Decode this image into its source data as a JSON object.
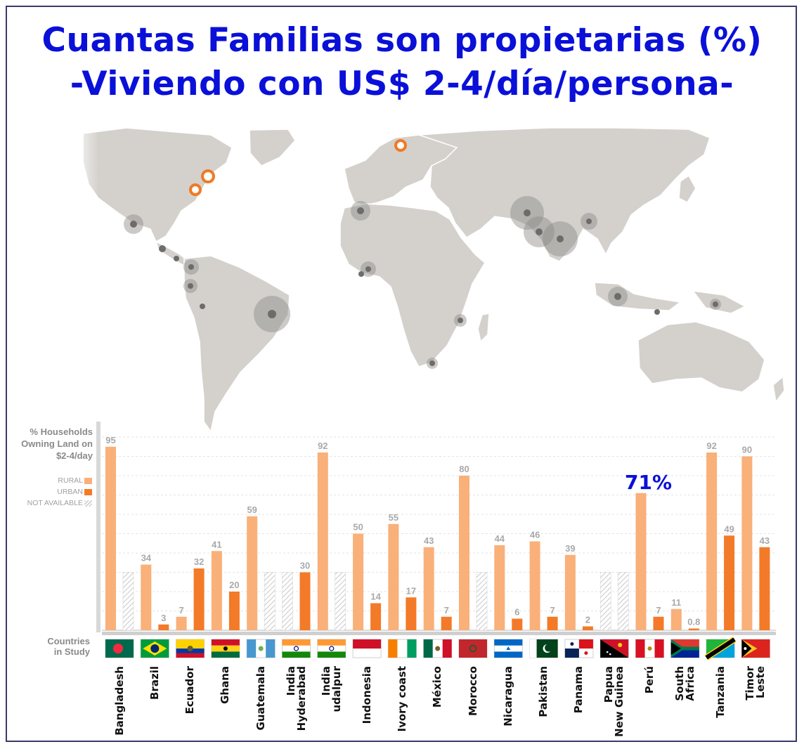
{
  "title": {
    "line1": "Cuantas Familias son propietarias (%)",
    "line2": "-Viviendo con US$ 2-4/día/persona-"
  },
  "legend": {
    "ylabel_lines": [
      "% Households",
      "Owning Land on",
      "$2-4/day"
    ],
    "rural": "RURAL",
    "urban": "URBAN",
    "not_available": "NOT AVAILABLE",
    "countries_label_lines": [
      "Countries",
      "in Study"
    ]
  },
  "colors": {
    "title": "#0a10d8",
    "rural": "#f9b079",
    "urban": "#f37a28",
    "na": "#e2e2e2",
    "map_land": "#d4d1cd",
    "marker_gray": "#8c8a88",
    "marker_orange": "#f07a24"
  },
  "annotation": {
    "peru_label": "71%"
  },
  "chart_data": {
    "type": "bar",
    "title": "% Households Owning Land on $2-4/day",
    "xlabel": "Countries in Study",
    "ylabel": "% Households Owning Land on $2-4/day",
    "ylim": [
      0,
      100
    ],
    "grid": true,
    "categories": [
      "Bangladesh",
      "Brazil",
      "Ecuador",
      "Ghana",
      "Guatemala",
      "India Hyderabad",
      "India udalpur",
      "Indonesia",
      "Ivory coast",
      "México",
      "Morocco",
      "Nicaragua",
      "Pakistan",
      "Panama",
      "Papua New Guinea",
      "Perú",
      "South Africa",
      "Tanzania",
      "Timor Leste"
    ],
    "category_lines": [
      [
        "Bangladesh"
      ],
      [
        "Brazil"
      ],
      [
        "Ecuador"
      ],
      [
        "Ghana"
      ],
      [
        "Guatemala"
      ],
      [
        "India",
        "Hyderabad"
      ],
      [
        "India",
        "udalpur"
      ],
      [
        "Indonesia"
      ],
      [
        "Ivory coast"
      ],
      [
        "México"
      ],
      [
        "Morocco"
      ],
      [
        "Nicaragua"
      ],
      [
        "Pakistan"
      ],
      [
        "Panama"
      ],
      [
        "Papua",
        "New Guinea"
      ],
      [
        "Perú"
      ],
      [
        "South",
        "Africa"
      ],
      [
        "Tanzania"
      ],
      [
        "Timor",
        "Leste"
      ]
    ],
    "series": [
      {
        "name": "RURAL",
        "values": [
          95,
          34,
          7,
          41,
          59,
          null,
          92,
          50,
          55,
          43,
          80,
          44,
          46,
          39,
          null,
          71,
          11,
          92,
          90
        ]
      },
      {
        "name": "URBAN",
        "values": [
          null,
          3,
          32,
          20,
          null,
          30,
          null,
          14,
          17,
          7,
          null,
          6,
          7,
          2,
          null,
          7,
          0.8,
          49,
          43
        ]
      }
    ],
    "value_labels": {
      "rural": [
        "95",
        "34",
        "7",
        "41",
        "59",
        "",
        "92",
        "50",
        "55",
        "43",
        "80",
        "44",
        "46",
        "39",
        "",
        "",
        "11",
        "92",
        "90"
      ],
      "urban": [
        "",
        "3",
        "32",
        "20",
        "",
        "30",
        "",
        "14",
        "17",
        "7",
        "",
        "6",
        "7",
        "2",
        "",
        "7",
        "0.8",
        "49",
        "43"
      ]
    },
    "not_available": [
      {
        "category": "Bangladesh",
        "series": "URBAN"
      },
      {
        "category": "Guatemala",
        "series": "URBAN"
      },
      {
        "category": "India Hyderabad",
        "series": "RURAL"
      },
      {
        "category": "India udalpur",
        "series": "URBAN"
      },
      {
        "category": "Morocco",
        "series": "URBAN"
      },
      {
        "category": "Papua New Guinea",
        "series": "RURAL"
      },
      {
        "category": "Papua New Guinea",
        "series": "URBAN"
      }
    ]
  },
  "map_markers": [
    {
      "region": "north-america-east-1",
      "color": "orange"
    },
    {
      "region": "north-america-east-2",
      "color": "orange"
    },
    {
      "region": "northern-europe",
      "color": "orange"
    },
    {
      "region": "mexico",
      "color": "gray"
    },
    {
      "region": "central-america",
      "color": "gray"
    },
    {
      "region": "ecuador",
      "color": "gray"
    },
    {
      "region": "peru",
      "color": "gray"
    },
    {
      "region": "brazil",
      "color": "gray"
    },
    {
      "region": "morocco",
      "color": "gray"
    },
    {
      "region": "ivory-coast",
      "color": "gray"
    },
    {
      "region": "ghana",
      "color": "gray"
    },
    {
      "region": "tanzania",
      "color": "gray"
    },
    {
      "region": "south-africa",
      "color": "gray"
    },
    {
      "region": "pakistan",
      "color": "gray"
    },
    {
      "region": "india",
      "color": "gray"
    },
    {
      "region": "bangladesh",
      "color": "gray"
    },
    {
      "region": "indonesia",
      "color": "gray"
    },
    {
      "region": "timor-leste",
      "color": "gray"
    },
    {
      "region": "papua-new-guinea",
      "color": "gray"
    }
  ]
}
